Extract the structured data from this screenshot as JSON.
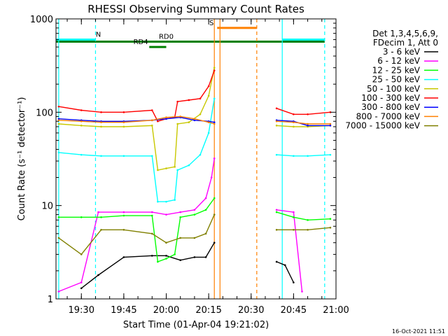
{
  "chart_data": {
    "type": "line",
    "title": "RHESSI Observing Summary Count Rates",
    "xlabel": "Start Time (01-Apr-04 19:21:02)",
    "ylabel": "Count Rate (s⁻¹ detector⁻¹)",
    "y_scale": "log",
    "ylim": [
      1,
      1000
    ],
    "xlim": [
      "19:21:02",
      "21:00:00"
    ],
    "x_ticks": [
      "19:30",
      "19:45",
      "20:00",
      "20:15",
      "20:30",
      "20:45",
      "21:00"
    ],
    "y_ticks": [
      "1",
      "10",
      "100",
      "1000"
    ],
    "grid": false,
    "legend_position": "right",
    "legend_header": [
      "Det 1,3,4,5,6,9,",
      "FDecim 1, Att 0"
    ],
    "footer_date": "16-Oct-2021 11:51",
    "data_gaps": [
      [
        "20:18",
        "20:38"
      ]
    ],
    "series": [
      {
        "name": "3 - 6 keV",
        "color": "#000000",
        "x": [
          "19:30",
          "19:36",
          "19:45",
          "19:55",
          "20:00",
          "20:05",
          "20:10",
          "20:14",
          "20:17",
          "20:39",
          "20:42",
          "20:45"
        ],
        "values": [
          1.3,
          1.8,
          2.8,
          2.9,
          2.9,
          2.6,
          2.8,
          2.8,
          4.0,
          2.5,
          2.3,
          1.5
        ]
      },
      {
        "name": "6 - 12 keV",
        "color": "#ff00ff",
        "x": [
          "19:22",
          "19:30",
          "19:36",
          "19:45",
          "19:55",
          "20:00",
          "20:05",
          "20:10",
          "20:14",
          "20:16",
          "20:17",
          "20:39",
          "20:45",
          "20:48"
        ],
        "values": [
          1.2,
          1.5,
          8.5,
          8.5,
          8.5,
          8.0,
          8.5,
          9.0,
          12,
          20,
          32,
          9.0,
          8.5,
          1.2
        ]
      },
      {
        "name": "12 - 25 keV",
        "color": "#00ff00",
        "x": [
          "19:22",
          "19:30",
          "19:37",
          "19:45",
          "19:55",
          "19:57",
          "20:00",
          "20:03",
          "20:05",
          "20:10",
          "20:14",
          "20:17",
          "20:39",
          "20:45",
          "20:50",
          "20:58"
        ],
        "values": [
          7.5,
          7.5,
          7.5,
          7.8,
          7.8,
          2.5,
          2.7,
          3.0,
          7.5,
          8.0,
          9.0,
          12,
          8.5,
          7.5,
          7.0,
          7.2
        ]
      },
      {
        "name": "25 - 50 keV",
        "color": "#00ffff",
        "x": [
          "19:22",
          "19:30",
          "19:37",
          "19:45",
          "19:55",
          "19:57",
          "20:00",
          "20:03",
          "20:04",
          "20:08",
          "20:12",
          "20:15",
          "20:17",
          "20:39",
          "20:45",
          "20:50",
          "20:58"
        ],
        "values": [
          37,
          35,
          34,
          34,
          34,
          11,
          11,
          11.5,
          24,
          27,
          35,
          60,
          140,
          35,
          34,
          34,
          35
        ]
      },
      {
        "name": "50 - 100 keV",
        "color": "#c8c800",
        "x": [
          "19:22",
          "19:30",
          "19:37",
          "19:45",
          "19:55",
          "19:57",
          "20:00",
          "20:03",
          "20:04",
          "20:08",
          "20:12",
          "20:15",
          "20:17",
          "20:39",
          "20:45",
          "20:50",
          "20:58"
        ],
        "values": [
          75,
          72,
          70,
          70,
          72,
          24,
          25,
          26,
          75,
          78,
          95,
          150,
          300,
          72,
          70,
          70,
          72
        ]
      },
      {
        "name": "100 - 300 keV",
        "color": "#ff0000",
        "x": [
          "19:22",
          "19:30",
          "19:37",
          "19:45",
          "19:55",
          "19:57",
          "20:00",
          "20:03",
          "20:04",
          "20:08",
          "20:12",
          "20:15",
          "20:17",
          "20:39",
          "20:45",
          "20:50",
          "20:58"
        ],
        "values": [
          115,
          105,
          100,
          100,
          105,
          80,
          85,
          88,
          130,
          135,
          140,
          190,
          280,
          110,
          95,
          95,
          100
        ]
      },
      {
        "name": "300 - 800 keV",
        "color": "#0000ff",
        "x": [
          "19:22",
          "19:30",
          "19:37",
          "19:45",
          "19:55",
          "20:00",
          "20:05",
          "20:10",
          "20:15",
          "20:17",
          "20:39",
          "20:45",
          "20:50",
          "20:58"
        ],
        "values": [
          85,
          82,
          80,
          80,
          82,
          85,
          88,
          82,
          80,
          78,
          82,
          80,
          72,
          72
        ]
      },
      {
        "name": "800 - 7000 keV",
        "color": "#ff8000",
        "x": [
          "19:22",
          "19:30",
          "19:37",
          "19:45",
          "19:55",
          "20:00",
          "20:05",
          "20:10",
          "20:15",
          "20:17",
          "20:39",
          "20:45",
          "20:50",
          "20:58"
        ],
        "values": [
          82,
          80,
          78,
          78,
          82,
          88,
          90,
          85,
          78,
          75,
          80,
          78,
          75,
          75
        ]
      },
      {
        "name": "7000 - 15000 keV",
        "color": "#808000",
        "x": [
          "19:22",
          "19:30",
          "19:37",
          "19:45",
          "19:55",
          "20:00",
          "20:05",
          "20:10",
          "20:14",
          "20:17",
          "20:39",
          "20:45",
          "20:50",
          "20:58"
        ],
        "values": [
          4.5,
          3.0,
          5.5,
          5.5,
          5.0,
          4.0,
          4.5,
          4.5,
          5.0,
          8.0,
          5.5,
          5.5,
          5.5,
          5.8
        ]
      }
    ],
    "state_bars": [
      {
        "label": "N",
        "color": "#00ffff",
        "level": 600,
        "segments": [
          [
            "19:21:02",
            "19:35"
          ],
          [
            "20:41",
            "20:56"
          ]
        ],
        "label_at": "19:36"
      },
      {
        "label": "RD0",
        "color": "#008000",
        "level": 570,
        "segments": [
          [
            "19:21:02",
            "20:56"
          ]
        ],
        "label_at": "20:00"
      },
      {
        "label": "RD4",
        "color": "#008000",
        "level": 500,
        "segments": [
          [
            "19:54",
            "20:00"
          ]
        ],
        "label_at": "19:51"
      },
      {
        "label": "S",
        "color": "#ff8000",
        "level": 800,
        "segments": [
          [
            "20:18",
            "20:32"
          ]
        ],
        "label_at": "20:16"
      }
    ],
    "markers": [
      {
        "time": "20:17",
        "color": "#ff8000",
        "style": "solid"
      },
      {
        "time": "20:19",
        "color": "#ff8000",
        "style": "solid"
      },
      {
        "time": "20:32",
        "color": "#ff8000",
        "style": "dashed"
      },
      {
        "time": "19:22",
        "color": "#00ffff",
        "style": "solid"
      },
      {
        "time": "19:35",
        "color": "#00ffff",
        "style": "dashed"
      },
      {
        "time": "20:41",
        "color": "#00ffff",
        "style": "solid"
      },
      {
        "time": "20:56",
        "color": "#00ffff",
        "style": "dashed"
      }
    ]
  }
}
